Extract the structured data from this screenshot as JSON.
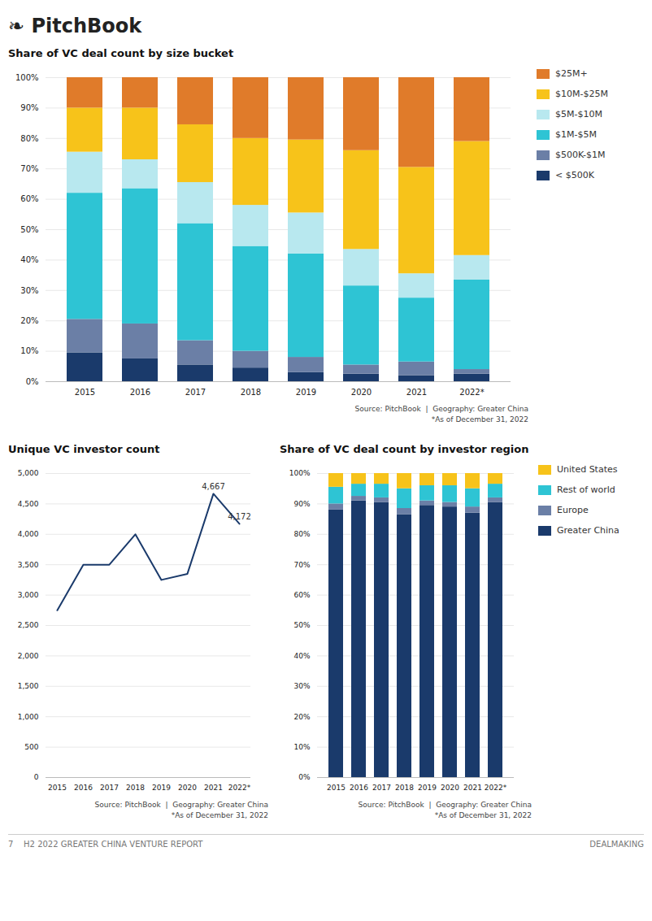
{
  "title": "❧ PitchBook",
  "annotations": [
    {
      "text": "7    H2 2022 GREATER CHINA VENTURE REPORT"
    },
    {
      "text": "DEALMAKING"
    }
  ],
  "chart_data": [
    {
      "type": "bar",
      "title": "Share of VC deal count by size bucket",
      "stacked": true,
      "grid": true,
      "legend": "right",
      "categories": [
        "2015",
        "2016",
        "2017",
        "2018",
        "2019",
        "2020",
        "2021",
        "2022*"
      ],
      "series": [
        {
          "name": "< $500K",
          "color": "#1a3a6b",
          "values": [
            9.5,
            7.5,
            5.5,
            4.5,
            3.0,
            2.5,
            2.0,
            2.5
          ]
        },
        {
          "name": "$500K-$1M",
          "color": "#6b7fa6",
          "values": [
            11.0,
            11.5,
            8.0,
            5.5,
            5.0,
            3.0,
            4.5,
            1.5
          ]
        },
        {
          "name": "$1M-$5M",
          "color": "#2ec4d4",
          "values": [
            41.5,
            44.5,
            38.5,
            34.5,
            34.0,
            26.0,
            21.0,
            29.5
          ]
        },
        {
          "name": "$5M-$10M",
          "color": "#b8e8ef",
          "values": [
            13.5,
            9.5,
            13.5,
            13.5,
            13.5,
            12.0,
            8.0,
            8.0
          ]
        },
        {
          "name": "$10M-$25M",
          "color": "#f7c31a",
          "values": [
            14.5,
            17.0,
            19.0,
            22.0,
            24.0,
            32.5,
            35.0,
            37.5
          ]
        },
        {
          "name": "$25M+",
          "color": "#e07b2a",
          "values": [
            10.0,
            10.0,
            15.5,
            20.0,
            20.5,
            24.0,
            29.5,
            21.0
          ]
        }
      ],
      "ylim": [
        0,
        100
      ],
      "yticks": [
        {
          "value": 0,
          "label": "0%"
        },
        {
          "value": 10,
          "label": "10%"
        },
        {
          "value": 20,
          "label": "20%"
        },
        {
          "value": 30,
          "label": "30%"
        },
        {
          "value": 40,
          "label": "40%"
        },
        {
          "value": 50,
          "label": "50%"
        },
        {
          "value": 60,
          "label": "60%"
        },
        {
          "value": 70,
          "label": "70%"
        },
        {
          "value": 80,
          "label": "80%"
        },
        {
          "value": 90,
          "label": "90%"
        },
        {
          "value": 100,
          "label": "100%"
        }
      ],
      "annotations": [
        {
          "text": "Source: PitchBook  |  Geography: Greater China"
        },
        {
          "text": "*As of December 31, 2022"
        }
      ]
    },
    {
      "type": "line",
      "title": "Unique VC investor count",
      "grid": true,
      "color": "#1a3a6b",
      "categories": [
        "2015",
        "2016",
        "2017",
        "2018",
        "2019",
        "2020",
        "2021",
        "2022*"
      ],
      "values": [
        2750,
        3500,
        3500,
        4000,
        3250,
        3350,
        4667,
        4172
      ],
      "ylim": [
        0,
        5000
      ],
      "yticks": [
        0,
        500,
        {
          "value": 1000,
          "label": "1,000"
        },
        {
          "value": 1500,
          "label": "1,500"
        },
        {
          "value": 2000,
          "label": "2,000"
        },
        {
          "value": 2500,
          "label": "2,500"
        },
        {
          "value": 3000,
          "label": "3,000"
        },
        {
          "value": 3500,
          "label": "3,500"
        },
        {
          "value": 4000,
          "label": "4,000"
        },
        {
          "value": 4500,
          "label": "4,500"
        },
        {
          "value": 5000,
          "label": "5,000"
        }
      ],
      "annotations": [
        {
          "text": "4,667",
          "x": "2021",
          "y": 4667
        },
        {
          "text": "4,172",
          "x": "2022*",
          "y": 4172
        },
        {
          "text": "Source: PitchBook  |  Geography: Greater China"
        },
        {
          "text": "*As of December 31, 2022"
        }
      ]
    },
    {
      "type": "bar",
      "title": "Share of VC deal count by investor region",
      "stacked": true,
      "grid": true,
      "legend": "right",
      "categories": [
        "2015",
        "2016",
        "2017",
        "2018",
        "2019",
        "2020",
        "2021",
        "2022*"
      ],
      "series": [
        {
          "name": "Greater China",
          "color": "#1a3a6b",
          "values": [
            88.0,
            91.0,
            90.5,
            86.5,
            89.5,
            89.0,
            87.0,
            90.5
          ]
        },
        {
          "name": "Europe",
          "color": "#6b7fa6",
          "values": [
            2.0,
            1.5,
            1.5,
            2.0,
            1.5,
            1.5,
            2.0,
            1.5
          ]
        },
        {
          "name": "Rest of world",
          "color": "#2ec4d4",
          "values": [
            5.5,
            4.0,
            4.5,
            6.5,
            5.0,
            5.5,
            6.0,
            4.5
          ]
        },
        {
          "name": "United States",
          "color": "#f7c31a",
          "values": [
            4.5,
            3.5,
            3.5,
            5.0,
            4.0,
            4.0,
            5.0,
            3.5
          ]
        }
      ],
      "ylim": [
        0,
        100
      ],
      "yticks": [
        {
          "value": 0,
          "label": "0%"
        },
        {
          "value": 10,
          "label": "10%"
        },
        {
          "value": 20,
          "label": "20%"
        },
        {
          "value": 30,
          "label": "30%"
        },
        {
          "value": 40,
          "label": "40%"
        },
        {
          "value": 50,
          "label": "50%"
        },
        {
          "value": 60,
          "label": "60%"
        },
        {
          "value": 70,
          "label": "70%"
        },
        {
          "value": 80,
          "label": "80%"
        },
        {
          "value": 90,
          "label": "90%"
        },
        {
          "value": 100,
          "label": "100%"
        }
      ],
      "annotations": [
        {
          "text": "Source: PitchBook  |  Geography: Greater China"
        },
        {
          "text": "*As of December 31, 2022"
        }
      ]
    }
  ]
}
